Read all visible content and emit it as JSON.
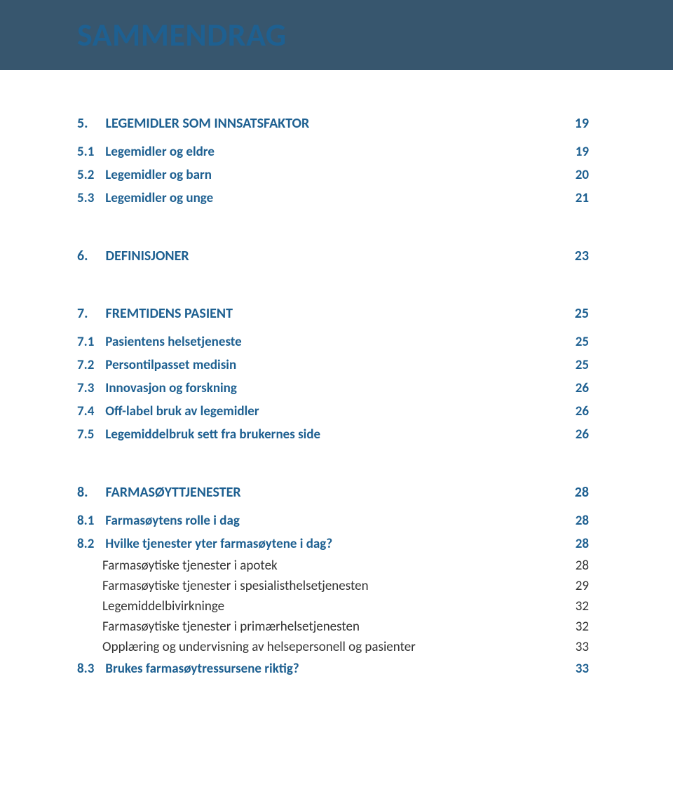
{
  "colors": {
    "header_bg": "#37566e",
    "link_color": "#1e6091",
    "body_color": "#333333",
    "page_bg": "#ffffff"
  },
  "header": {
    "title": "SAMMENDRAG"
  },
  "sections": [
    {
      "heading": {
        "num": "5.",
        "label": "LEGEMIDLER SOM INNSATSFAKTOR",
        "page": "19"
      },
      "subs": [
        {
          "num": "5.1",
          "label": "Legemidler og eldre",
          "page": "19"
        },
        {
          "num": "5.2",
          "label": "Legemidler og barn",
          "page": "20"
        },
        {
          "num": "5.3",
          "label": "Legemidler og unge",
          "page": "21"
        }
      ]
    },
    {
      "heading": {
        "num": "6.",
        "label": "DEFINISJONER",
        "page": "23"
      },
      "subs": []
    },
    {
      "heading": {
        "num": "7.",
        "label": "FREMTIDENS PASIENT",
        "page": "25"
      },
      "subs": [
        {
          "num": "7.1",
          "label": "Pasientens helsetjeneste",
          "page": "25"
        },
        {
          "num": "7.2",
          "label": "Persontilpasset medisin",
          "page": "25"
        },
        {
          "num": "7.3",
          "label": "Innovasjon og forskning",
          "page": "26"
        },
        {
          "num": "7.4",
          "label": "Off-label bruk av legemidler",
          "page": "26"
        },
        {
          "num": "7.5",
          "label": "Legemiddelbruk sett fra brukernes side",
          "page": "26"
        }
      ]
    },
    {
      "heading": {
        "num": "8.",
        "label": "FARMASØYTTJENESTER",
        "page": "28"
      },
      "subs": [
        {
          "num": "8.1",
          "label": "Farmasøytens rolle i dag",
          "page": "28"
        },
        {
          "num": "8.2",
          "label": "Hvilke tjenester yter farmasøytene i dag?",
          "page": "28",
          "body": [
            {
              "label": "Farmasøytiske tjenester i apotek",
              "page": "28"
            },
            {
              "label": "Farmasøytiske tjenester i spesialisthelsetjenesten",
              "page": "29"
            },
            {
              "label": "Legemiddelbivirkninge",
              "page": "32"
            },
            {
              "label": "Farmasøytiske tjenester i primærhelsetjenesten",
              "page": "32"
            },
            {
              "label": "Opplæring og undervisning av helsepersonell og pasienter",
              "page": "33"
            }
          ]
        },
        {
          "num": "8.3",
          "label": "Brukes farmasøytressursene riktig?",
          "page": "33"
        }
      ]
    }
  ]
}
